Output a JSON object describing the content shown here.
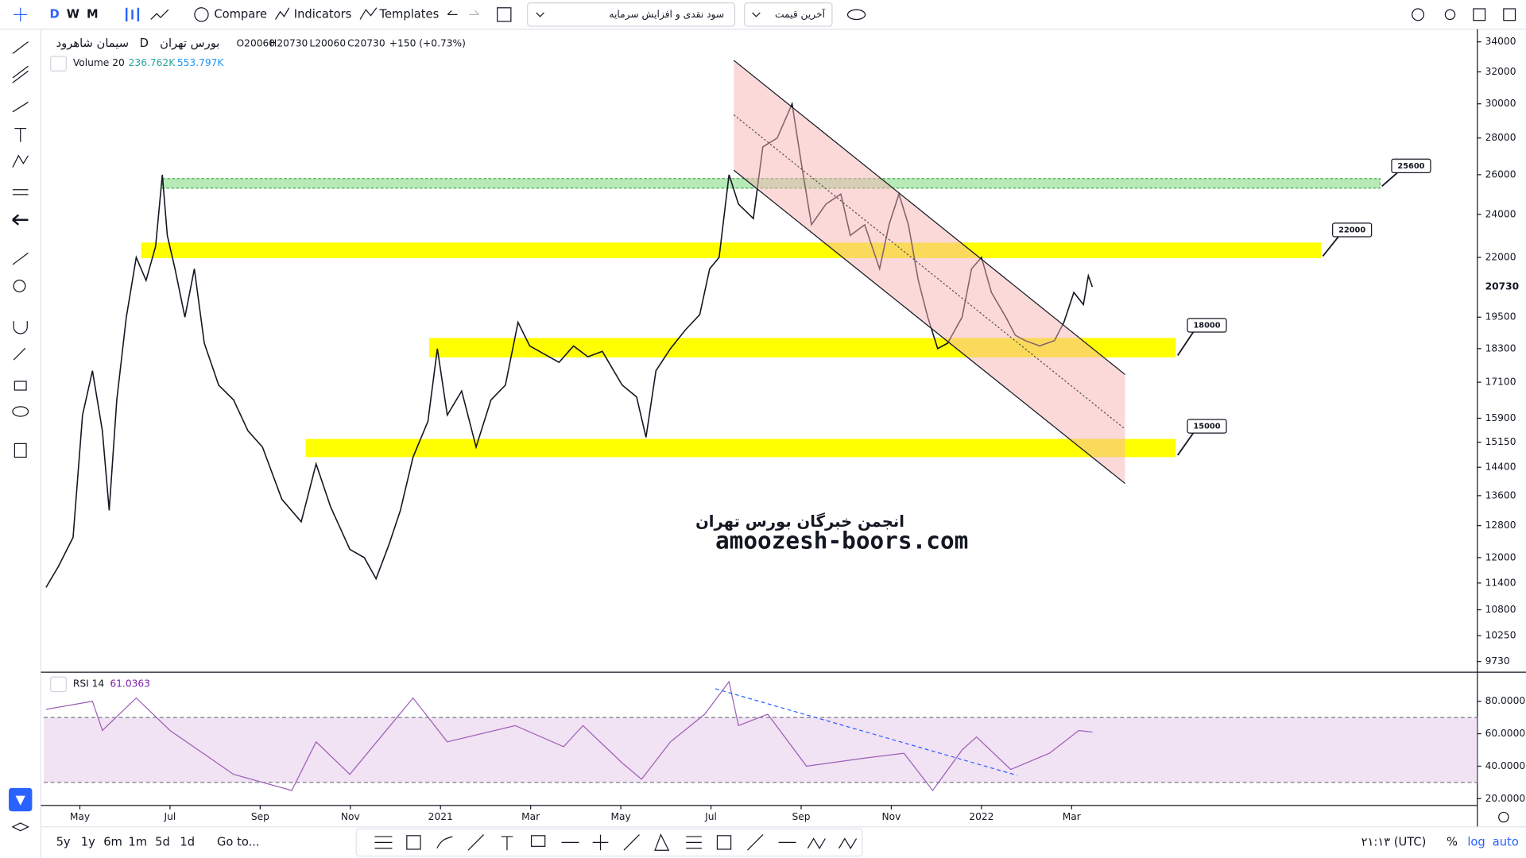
{
  "toolbar": {
    "intervals": [
      "D",
      "W",
      "M"
    ],
    "compare": "Compare",
    "indicators": "Indicators",
    "templates": "Templates",
    "adjust_dropdown": "سود نقدی و افزایش سرمایه",
    "price_dropdown": "آخرین قیمت"
  },
  "chart_data": [
    {
      "type": "line",
      "title": "سیمان شاهرود",
      "interval": "D",
      "exchange": "بورس تهران",
      "ohlc": [
        "O20060",
        "H20730",
        "L20060",
        "C20730"
      ],
      "change": "+150 (+0.73%)",
      "volume_label": "Volume 20",
      "volume_values": [
        "236.762K",
        "553.797K"
      ],
      "x": [
        -0.75,
        -0.47,
        -0.15,
        0.06,
        0.28,
        0.5,
        0.65,
        0.82,
        1.03,
        1.25,
        1.47,
        1.68,
        1.83,
        1.94,
        2.11,
        2.33,
        2.54,
        2.76,
        3.08,
        3.41,
        3.73,
        4.05,
        4.48,
        4.91,
        5.24,
        5.56,
        5.99,
        6.31,
        6.57,
        6.85,
        7.11,
        7.39,
        7.72,
        7.93,
        8.15,
        8.47,
        8.79,
        9.12,
        9.44,
        9.72,
        9.98,
        10.3,
        10.63,
        10.95,
        11.27,
        11.59,
        12.03,
        12.35,
        12.56,
        12.78,
        13.1,
        13.43,
        13.75,
        13.97,
        14.18,
        14.4,
        14.61,
        14.94,
        15.15,
        15.47,
        15.8,
        16.01,
        16.23,
        16.55,
        16.88,
        17.09,
        17.41,
        17.74,
        17.95,
        18.17,
        18.38,
        18.6,
        18.81,
        19.03,
        19.25,
        19.57,
        19.78,
        20,
        20.22,
        20.54,
        20.75,
        20.97,
        21.29,
        21.62,
        21.83,
        22.05,
        22.26,
        22.37,
        22.46
      ],
      "values": [
        11300,
        11800,
        12500,
        16000,
        17500,
        15500,
        13200,
        16500,
        19500,
        22000,
        21000,
        22500,
        26000,
        23000,
        21500,
        19500,
        21500,
        18500,
        17000,
        16500,
        15500,
        15000,
        13500,
        12900,
        14500,
        13300,
        12200,
        12000,
        11500,
        12300,
        13200,
        14700,
        15800,
        18300,
        16000,
        16800,
        15000,
        16500,
        17000,
        19300,
        18400,
        18100,
        17800,
        18400,
        18000,
        18200,
        17000,
        16600,
        15300,
        17500,
        18300,
        19000,
        19600,
        21500,
        22000,
        26000,
        24500,
        23800,
        27500,
        28000,
        30000,
        26500,
        23500,
        24500,
        25000,
        23000,
        23500,
        21500,
        23500,
        25000,
        23500,
        21000,
        19500,
        18300,
        18500,
        19500,
        21500,
        22000,
        20500,
        19500,
        18800,
        18600,
        18400,
        18600,
        19300,
        20500,
        20000,
        21200,
        20730
      ],
      "color": "#131722",
      "log_scale": true,
      "ylim": [
        9540,
        34880
      ],
      "yticks": [
        34000,
        32000,
        30000,
        28000,
        26000,
        24000,
        22000,
        19500,
        18300,
        17100,
        15900,
        15150,
        14400,
        13600,
        12800,
        12000,
        11400,
        10800,
        10250,
        9730
      ],
      "last_price": 20730,
      "xlim": [
        -0.8,
        31
      ],
      "xticks": [
        {
          "value": 0,
          "label": "May"
        },
        {
          "value": 2,
          "label": "Jul"
        },
        {
          "value": 4,
          "label": "Sep"
        },
        {
          "value": 6,
          "label": "Nov"
        },
        {
          "value": 8,
          "label": "2021"
        },
        {
          "value": 10,
          "label": "Mar"
        },
        {
          "value": 12,
          "label": "May"
        },
        {
          "value": 14,
          "label": "Jul"
        },
        {
          "value": 16,
          "label": "Sep"
        },
        {
          "value": 18,
          "label": "Nov"
        },
        {
          "value": 20,
          "label": "2022"
        },
        {
          "value": 22,
          "label": "Mar"
        }
      ],
      "zones": [
        {
          "label": "25600",
          "low": 25300,
          "high": 25800,
          "x": [
            1.83,
            28.84
          ],
          "color": "#b7eab7"
        },
        {
          "label": "22000",
          "low": 21970,
          "high": 22670,
          "x": [
            1.36,
            27.53
          ],
          "color": "#ffff00"
        },
        {
          "label": "18000",
          "low": 17980,
          "high": 18700,
          "x": [
            7.75,
            24.31
          ],
          "color": "#ffff00"
        },
        {
          "label": "15000",
          "low": 14700,
          "high": 15250,
          "x": [
            5.01,
            24.31
          ],
          "color": "#ffff00"
        }
      ],
      "watermark": [
        "انجمن خبرگان بورس تهران",
        "amoozesh-boors.com"
      ]
    },
    {
      "type": "line",
      "title": "RSI 14",
      "last_value": 61.0363,
      "color": "#9c5fb5",
      "x": [
        -0.75,
        0.28,
        0.5,
        1.25,
        2,
        3.41,
        4.7,
        5.24,
        5.99,
        7.39,
        8.15,
        9.66,
        10.73,
        11.16,
        12.03,
        12.46,
        13.1,
        13.86,
        14.4,
        14.61,
        15.26,
        16.12,
        17.41,
        18.28,
        18.92,
        19.57,
        19.89,
        20.65,
        21.51,
        22.16,
        22.46
      ],
      "values": [
        75,
        80,
        62,
        82,
        62,
        35,
        25,
        55,
        35,
        82,
        55,
        65,
        52,
        65,
        42,
        32,
        55,
        72,
        92,
        65,
        72,
        40,
        45,
        48,
        25,
        50,
        58,
        38,
        48,
        62,
        61.04
      ],
      "ylim": [
        15.8,
        97.3
      ],
      "band": [
        30,
        70
      ],
      "yticks": [
        {
          "value": 80,
          "label": "80.0000"
        },
        {
          "value": 60,
          "label": "60.0000"
        },
        {
          "value": 40,
          "label": "40.0000"
        },
        {
          "value": 20,
          "label": "20.0000"
        }
      ],
      "xlim": [
        -0.8,
        31
      ]
    }
  ],
  "bottom_bar": {
    "ranges": [
      "5y",
      "1y",
      "6m",
      "1m",
      "5d",
      "1d"
    ],
    "goto": "Go to...",
    "clock": "۲۱:۱۳ (UTC)",
    "percent": "%",
    "log": "log",
    "auto": "auto"
  }
}
